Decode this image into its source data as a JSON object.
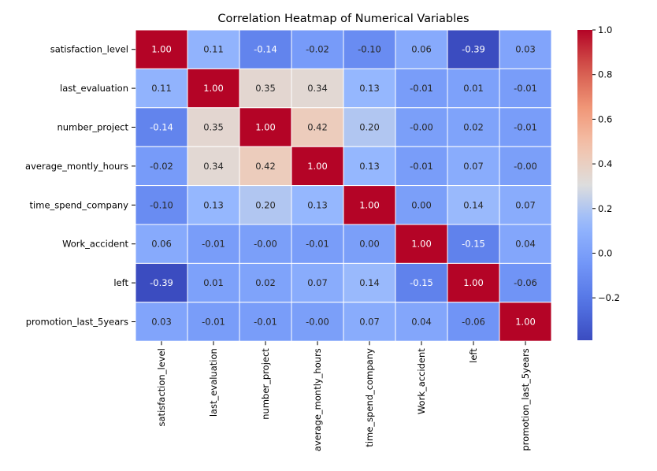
{
  "chart_data": {
    "type": "heatmap",
    "title": "Correlation Heatmap of Numerical Variables",
    "variables": [
      "satisfaction_level",
      "last_evaluation",
      "number_project",
      "average_montly_hours",
      "time_spend_company",
      "Work_accident",
      "left",
      "promotion_last_5years"
    ],
    "matrix": [
      [
        1.0,
        0.11,
        -0.14,
        -0.02,
        -0.1,
        0.06,
        -0.39,
        0.03
      ],
      [
        0.11,
        1.0,
        0.35,
        0.34,
        0.13,
        -0.01,
        0.01,
        -0.01
      ],
      [
        -0.14,
        0.35,
        1.0,
        0.42,
        0.2,
        -0.0,
        0.02,
        -0.01
      ],
      [
        -0.02,
        0.34,
        0.42,
        1.0,
        0.13,
        -0.01,
        0.07,
        -0.0
      ],
      [
        -0.1,
        0.13,
        0.2,
        0.13,
        1.0,
        0.0,
        0.14,
        0.07
      ],
      [
        0.06,
        -0.01,
        -0.0,
        -0.01,
        0.0,
        1.0,
        -0.15,
        0.04
      ],
      [
        -0.39,
        0.01,
        0.02,
        0.07,
        0.14,
        -0.15,
        1.0,
        -0.06
      ],
      [
        0.03,
        -0.01,
        -0.01,
        -0.0,
        0.07,
        0.04,
        -0.06,
        1.0
      ]
    ],
    "annotations": [
      [
        "1.00",
        "0.11",
        "-0.14",
        "-0.02",
        "-0.10",
        "0.06",
        "-0.39",
        "0.03"
      ],
      [
        "0.11",
        "1.00",
        "0.35",
        "0.34",
        "0.13",
        "-0.01",
        "0.01",
        "-0.01"
      ],
      [
        "-0.14",
        "0.35",
        "1.00",
        "0.42",
        "0.20",
        "-0.00",
        "0.02",
        "-0.01"
      ],
      [
        "-0.02",
        "0.34",
        "0.42",
        "1.00",
        "0.13",
        "-0.01",
        "0.07",
        "-0.00"
      ],
      [
        "-0.10",
        "0.13",
        "0.20",
        "0.13",
        "1.00",
        "0.00",
        "0.14",
        "0.07"
      ],
      [
        "0.06",
        "-0.01",
        "-0.00",
        "-0.01",
        "0.00",
        "1.00",
        "-0.15",
        "0.04"
      ],
      [
        "-0.39",
        "0.01",
        "0.02",
        "0.07",
        "0.14",
        "-0.15",
        "1.00",
        "-0.06"
      ],
      [
        "0.03",
        "-0.01",
        "-0.01",
        "-0.00",
        "0.07",
        "0.04",
        "-0.06",
        "1.00"
      ]
    ],
    "colormap": "coolwarm",
    "vmin": -0.39,
    "vmax": 1.0,
    "colorbar": {
      "ticks": [
        0.0,
        0.2,
        0.4,
        0.6,
        0.8,
        1.0,
        -0.2
      ],
      "tick_labels": [
        "0.0",
        "0.2",
        "0.4",
        "0.6",
        "0.8",
        "1.0",
        "−0.2"
      ]
    },
    "grid": true,
    "grid_color": "#ffffff"
  }
}
